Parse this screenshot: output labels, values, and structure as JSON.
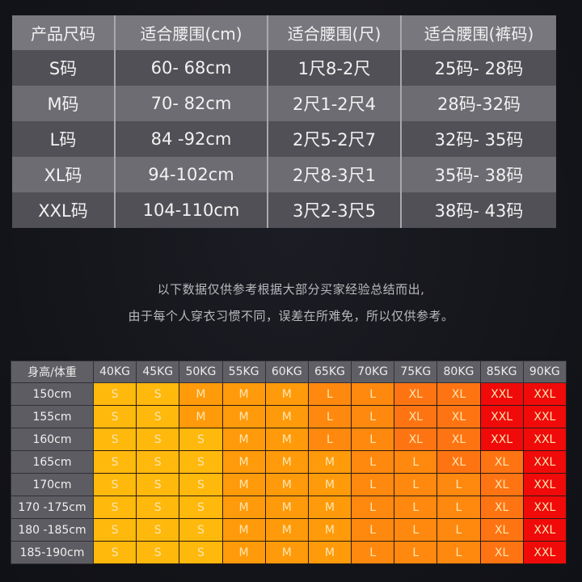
{
  "waist_table": {
    "headers": [
      "产品尺码",
      "适合腰围(cm)",
      "适合腰围(尺)",
      "适合腰围(裤码)"
    ],
    "rows": [
      {
        "size": "S码",
        "cm": "60- 68cm",
        "chi": "1尺8-2尺",
        "pants": "25码- 28码"
      },
      {
        "size": "M码",
        "cm": "70- 82cm",
        "chi": "2尺1-2尺4",
        "pants": "28码-32码"
      },
      {
        "size": "L码",
        "cm": "84 -92cm",
        "chi": "2尺5-2尺7",
        "pants": "32码- 35码"
      },
      {
        "size": "XL码",
        "cm": "94-102cm",
        "chi": "2尺8-3尺1",
        "pants": "35码- 38码"
      },
      {
        "size": "XXL码",
        "cm": "104-110cm",
        "chi": "3尺2-3尺5",
        "pants": "38码- 43码"
      }
    ]
  },
  "notes": {
    "line1": "以下数据仅供参考根据大部分买家经验总结而出,",
    "line2": "由于每个人穿衣习惯不同，误差在所难免，所以仅供参考。"
  },
  "size_chart": {
    "corner_label": "身高/体重",
    "weights": [
      "40KG",
      "45KG",
      "50KG",
      "55KG",
      "60KG",
      "65KG",
      "70KG",
      "75KG",
      "80KG",
      "85KG",
      "90KG"
    ],
    "colors": {
      "S": "#ffb80c",
      "M": "#ff9a0a",
      "L": "#ff880e",
      "XL": "#ff7412",
      "XXL": "#f00a0a"
    },
    "rows": [
      {
        "height": "150cm",
        "sizes": [
          "S",
          "S",
          "M",
          "M",
          "M",
          "L",
          "L",
          "XL",
          "XL",
          "XXL",
          "XXL"
        ]
      },
      {
        "height": "155cm",
        "sizes": [
          "S",
          "S",
          "M",
          "M",
          "M",
          "L",
          "L",
          "XL",
          "XL",
          "XXL",
          "XXL"
        ]
      },
      {
        "height": "160cm",
        "sizes": [
          "S",
          "S",
          "S",
          "M",
          "M",
          "L",
          "L",
          "XL",
          "XL",
          "XXL",
          "XXL"
        ]
      },
      {
        "height": "165cm",
        "sizes": [
          "S",
          "S",
          "S",
          "M",
          "M",
          "M",
          "L",
          "L",
          "XL",
          "XL",
          "XXL"
        ]
      },
      {
        "height": "170cm",
        "sizes": [
          "S",
          "S",
          "S",
          "M",
          "M",
          "M",
          "L",
          "L",
          "L",
          "XL",
          "XXL"
        ]
      },
      {
        "height": "170 -175cm",
        "sizes": [
          "S",
          "S",
          "S",
          "M",
          "M",
          "M",
          "L",
          "L",
          "L",
          "XL",
          "XXL"
        ]
      },
      {
        "height": "180 -185cm",
        "sizes": [
          "S",
          "S",
          "S",
          "M",
          "M",
          "M",
          "L",
          "L",
          "L",
          "XL",
          "XXL"
        ]
      },
      {
        "height": "185-190cm",
        "sizes": [
          "S",
          "S",
          "S",
          "M",
          "M",
          "M",
          "L",
          "L",
          "L",
          "XL",
          "XXL"
        ]
      }
    ]
  }
}
